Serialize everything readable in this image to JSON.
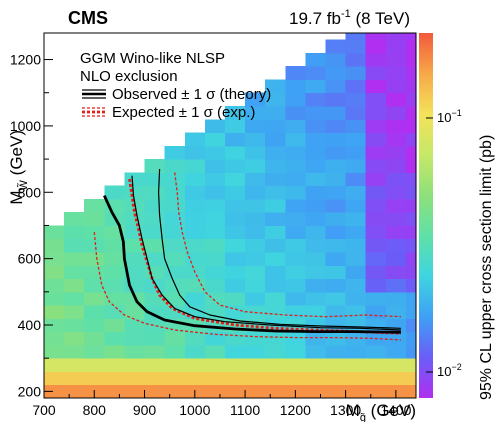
{
  "header": {
    "experiment": "CMS",
    "lumi_prefix": "19.7 fb",
    "lumi_superscript": "-1",
    "lumi_suffix": " (8 TeV)"
  },
  "legend": {
    "model_line1": "GGM Wino-like NLSP",
    "model_line2": "NLO exclusion",
    "observed_label": "Observed ± 1 σ (theory)",
    "expected_label": "Expected ± 1 σ (exp.)",
    "placement": "top-left"
  },
  "colorbar": {
    "label": "95% CL upper cross section limit (pb)",
    "tick_major_top": "10",
    "tick_major_top_exp": "−1",
    "tick_major_bottom": "10",
    "tick_major_bottom_exp": "−2",
    "scale": "log",
    "range": [
      0.007,
      0.2
    ],
    "colors_low_to_high": [
      "#b02ff0",
      "#6a5ef7",
      "#3fa0f5",
      "#3fd4e0",
      "#5fe0a8",
      "#8ee07a",
      "#c6e868",
      "#f4e25a",
      "#f6a848",
      "#f25a3c"
    ]
  },
  "chart_data": {
    "type": "heatmap",
    "title": "",
    "xlabel_main": "M",
    "xlabel_sub": "g̃",
    "xlabel_unit": " (GeV)",
    "ylabel_main": "M",
    "ylabel_sub": "W̃",
    "ylabel_unit": " (GeV)",
    "xlim": [
      700,
      1440
    ],
    "ylim": [
      180,
      1280
    ],
    "x_ticks": [
      700,
      800,
      900,
      1000,
      1100,
      1200,
      1300,
      1400
    ],
    "x_tick_labels": [
      "700",
      "800",
      "900",
      "1000",
      "1100",
      "1200",
      "1300",
      "1400"
    ],
    "y_ticks": [
      200,
      400,
      600,
      800,
      1000,
      1200
    ],
    "y_tick_labels": [
      "200",
      "400",
      "600",
      "800",
      "1000",
      "1200"
    ],
    "grid": false,
    "x_edges": [
      700,
      740,
      780,
      820,
      860,
      900,
      940,
      980,
      1020,
      1060,
      1100,
      1140,
      1180,
      1220,
      1260,
      1300,
      1340,
      1380,
      1420,
      1440
    ],
    "y_edges": [
      180,
      220,
      260,
      300,
      340,
      380,
      420,
      460,
      500,
      540,
      580,
      620,
      660,
      700,
      740,
      780,
      820,
      860,
      900,
      940,
      980,
      1020,
      1060,
      1100,
      1140,
      1180,
      1220,
      1260,
      1280
    ],
    "observed": [
      [
        820,
        790
      ],
      [
        835,
        740
      ],
      [
        850,
        700
      ],
      [
        858,
        650
      ],
      [
        860,
        600
      ],
      [
        870,
        520
      ],
      [
        885,
        470
      ],
      [
        905,
        440
      ],
      [
        940,
        415
      ],
      [
        1000,
        398
      ],
      [
        1080,
        388
      ],
      [
        1160,
        382
      ],
      [
        1240,
        380
      ],
      [
        1320,
        380
      ],
      [
        1410,
        378
      ]
    ],
    "observed_plus": [
      [
        875,
        850
      ],
      [
        878,
        790
      ],
      [
        885,
        730
      ],
      [
        895,
        660
      ],
      [
        905,
        600
      ],
      [
        915,
        540
      ],
      [
        935,
        490
      ],
      [
        960,
        450
      ],
      [
        1000,
        425
      ],
      [
        1060,
        410
      ],
      [
        1150,
        400
      ],
      [
        1250,
        392
      ],
      [
        1330,
        390
      ],
      [
        1410,
        385
      ]
    ],
    "observed_minus": [
      [
        930,
        870
      ],
      [
        928,
        800
      ],
      [
        930,
        730
      ],
      [
        935,
        660
      ],
      [
        940,
        600
      ],
      [
        955,
        540
      ],
      [
        970,
        490
      ],
      [
        990,
        455
      ],
      [
        1030,
        430
      ],
      [
        1090,
        412
      ],
      [
        1170,
        402
      ],
      [
        1250,
        397
      ],
      [
        1330,
        394
      ],
      [
        1410,
        390
      ]
    ],
    "expected": [
      [
        870,
        840
      ],
      [
        875,
        790
      ],
      [
        880,
        740
      ],
      [
        888,
        690
      ],
      [
        895,
        640
      ],
      [
        905,
        590
      ],
      [
        915,
        540
      ],
      [
        930,
        490
      ],
      [
        955,
        450
      ],
      [
        1000,
        420
      ],
      [
        1080,
        400
      ],
      [
        1160,
        390
      ],
      [
        1240,
        385
      ],
      [
        1320,
        380
      ],
      [
        1410,
        375
      ]
    ],
    "expected_plus": [
      [
        800,
        680
      ],
      [
        805,
        600
      ],
      [
        815,
        520
      ],
      [
        830,
        470
      ],
      [
        860,
        430
      ],
      [
        900,
        405
      ],
      [
        960,
        385
      ],
      [
        1040,
        372
      ],
      [
        1120,
        365
      ],
      [
        1200,
        362
      ],
      [
        1280,
        362
      ],
      [
        1350,
        360
      ],
      [
        1410,
        355
      ]
    ],
    "expected_minus": [
      [
        960,
        860
      ],
      [
        965,
        800
      ],
      [
        968,
        740
      ],
      [
        975,
        680
      ],
      [
        985,
        620
      ],
      [
        1000,
        560
      ],
      [
        1020,
        500
      ],
      [
        1050,
        460
      ],
      [
        1100,
        440
      ],
      [
        1180,
        430
      ],
      [
        1260,
        425
      ],
      [
        1340,
        430
      ],
      [
        1410,
        425
      ]
    ]
  }
}
